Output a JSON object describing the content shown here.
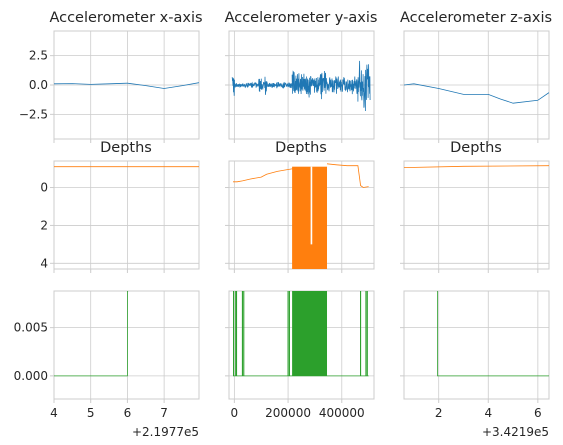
{
  "colors": {
    "accel": "#1f77b4",
    "depth": "#ff7f0e",
    "trigger": "#2ca02c",
    "grid": "#cccccc",
    "text": "#262626"
  },
  "titles": {
    "accel_x": "Accelerometer x-axis",
    "accel_y": "Accelerometer y-axis",
    "accel_z": "Accelerometer z-axis",
    "depth_left": "Depths",
    "depth_mid": "Depths",
    "depth_right": "Depths"
  },
  "offsets": {
    "left": "+2.1977e5",
    "right": "+3.4219e5"
  },
  "chart_data": [
    {
      "id": "ax_x",
      "type": "line",
      "title": "Accelerometer x-axis",
      "xlim": [
        4.0,
        7.95
      ],
      "ylim": [
        -4.6,
        4.6
      ],
      "yticks": [
        2.5,
        0.0,
        -2.5
      ],
      "ytick_labels": [
        "2.5",
        "0.0",
        "−2.5"
      ],
      "xticks": [
        4,
        5,
        6,
        7
      ],
      "show_xtick_labels": false,
      "series": [
        {
          "style": "line",
          "color": "accel",
          "x": [
            4.0,
            4.5,
            5.0,
            5.5,
            6.0,
            6.5,
            7.0,
            7.5,
            7.95
          ],
          "y": [
            0.1,
            0.12,
            0.05,
            0.1,
            0.15,
            -0.05,
            -0.3,
            -0.05,
            0.2
          ]
        }
      ]
    },
    {
      "id": "ax_y",
      "type": "line",
      "title": "Accelerometer y-axis",
      "xlim": [
        -20000,
        520000
      ],
      "ylim": [
        -4.6,
        4.6
      ],
      "yticks": [
        2.5,
        0.0,
        -2.5
      ],
      "show_ytick_labels": false,
      "xticks": [
        0,
        200000,
        400000
      ],
      "show_xtick_labels": false,
      "series": [
        {
          "style": "noise",
          "color": "accel",
          "regions": [
            [
              -8000,
              0,
              0.0,
              2.0
            ],
            [
              0,
              90000,
              0.0,
              0.25
            ],
            [
              90000,
              120000,
              0.0,
              0.9
            ],
            [
              120000,
              215000,
              0.0,
              0.3
            ],
            [
              215000,
              345000,
              0.0,
              1.3
            ],
            [
              345000,
              460000,
              0.0,
              0.9
            ],
            [
              460000,
              505000,
              0.0,
              2.6
            ]
          ]
        }
      ]
    },
    {
      "id": "ax_z",
      "type": "line",
      "title": "Accelerometer z-axis",
      "xlim": [
        0.6,
        6.45
      ],
      "ylim": [
        -4.6,
        4.6
      ],
      "yticks": [
        2.5,
        0.0,
        -2.5
      ],
      "show_ytick_labels": false,
      "xticks": [
        2,
        4,
        6
      ],
      "show_xtick_labels": false,
      "series": [
        {
          "style": "line",
          "color": "accel",
          "x": [
            0.6,
            1.0,
            2.0,
            3.0,
            4.0,
            4.5,
            5.0,
            6.0,
            6.45
          ],
          "y": [
            0.0,
            0.1,
            -0.3,
            -0.8,
            -0.8,
            -1.2,
            -1.55,
            -1.3,
            -0.65
          ]
        }
      ]
    },
    {
      "id": "dp_left",
      "type": "line",
      "title": "Depths",
      "xlim": [
        4.0,
        7.95
      ],
      "ylim": [
        -1.4,
        4.3
      ],
      "inverted_y": true,
      "yticks": [
        0,
        2,
        4
      ],
      "ytick_labels": [
        "0",
        "2",
        "4"
      ],
      "xticks": [
        4,
        5,
        6,
        7
      ],
      "show_xtick_labels": false,
      "series": [
        {
          "style": "line",
          "color": "depth",
          "x": [
            4.0,
            7.95
          ],
          "y": [
            -1.1,
            -1.1
          ]
        }
      ]
    },
    {
      "id": "dp_mid",
      "type": "line",
      "title": "Depths",
      "xlim": [
        -20000,
        520000
      ],
      "ylim": [
        -1.4,
        4.3
      ],
      "inverted_y": true,
      "yticks": [
        0,
        2,
        4
      ],
      "show_ytick_labels": false,
      "xticks": [
        0,
        200000,
        400000
      ],
      "show_xtick_labels": false,
      "series": [
        {
          "style": "line",
          "color": "depth",
          "x": [
            -5000,
            10000,
            30000,
            60000,
            100000,
            120000,
            160000,
            200000,
            220000
          ],
          "y": [
            -0.3,
            -0.3,
            -0.35,
            -0.45,
            -0.55,
            -0.7,
            -0.85,
            -0.95,
            -1.0
          ]
        },
        {
          "style": "line",
          "color": "depth",
          "x": [
            345000,
            380000,
            420000,
            460000,
            470000,
            480000,
            500000
          ],
          "y": [
            -1.25,
            -1.2,
            -1.15,
            -1.15,
            -0.1,
            0.0,
            -0.05
          ]
        },
        {
          "style": "fill",
          "color": "depth",
          "x0": 215000,
          "x1": 345000,
          "y_top": -1.1,
          "y_bottom": 4.3,
          "gaps": [
            [
              284000,
              290000,
              -1.1,
              3.0
            ]
          ]
        }
      ]
    },
    {
      "id": "dp_right",
      "type": "line",
      "title": "Depths",
      "xlim": [
        0.6,
        6.45
      ],
      "ylim": [
        -1.4,
        4.3
      ],
      "inverted_y": true,
      "yticks": [
        0,
        2,
        4
      ],
      "show_ytick_labels": false,
      "xticks": [
        2,
        4,
        6
      ],
      "show_xtick_labels": false,
      "series": [
        {
          "style": "line",
          "color": "depth",
          "x": [
            0.6,
            3.0,
            6.45
          ],
          "y": [
            -1.05,
            -1.12,
            -1.15
          ]
        }
      ]
    },
    {
      "id": "tr_left",
      "type": "line",
      "xlim": [
        4.0,
        7.95
      ],
      "ylim": [
        -0.0024,
        0.0088
      ],
      "yticks": [
        0.005,
        0.0
      ],
      "ytick_labels": [
        "0.005",
        "0.000"
      ],
      "xticks": [
        4,
        5,
        6,
        7
      ],
      "xtick_labels": [
        "4",
        "5",
        "6",
        "7"
      ],
      "offset": "+2.1977e5",
      "series": [
        {
          "style": "line",
          "color": "trigger",
          "x": [
            4.0,
            6.0,
            6.0,
            6.02
          ],
          "y": [
            0.0,
            0.0,
            0.0088,
            0.0088
          ]
        }
      ]
    },
    {
      "id": "tr_mid",
      "type": "line",
      "xlim": [
        -20000,
        520000
      ],
      "ylim": [
        -0.0024,
        0.0088
      ],
      "yticks": [
        0.005,
        0.0
      ],
      "show_ytick_labels": false,
      "xticks": [
        0,
        200000,
        400000
      ],
      "xtick_labels": [
        "0",
        "200000",
        "400000"
      ],
      "series": [
        {
          "style": "line",
          "color": "trigger",
          "x": [
            -5000,
            500000
          ],
          "y": [
            0.0,
            0.0
          ]
        },
        {
          "style": "spikes",
          "color": "trigger",
          "x": [
            -3000,
            5000,
            8000,
            30000,
            35000,
            200000,
            205000,
            470000,
            490000,
            495000
          ],
          "y_low": 0.0,
          "y_high": 0.0088
        },
        {
          "style": "fill",
          "color": "trigger",
          "x0": 215000,
          "x1": 345000,
          "y_top": 0.0088,
          "y_bottom": 0.0,
          "gaps": []
        }
      ]
    },
    {
      "id": "tr_right",
      "type": "line",
      "xlim": [
        0.6,
        6.45
      ],
      "ylim": [
        -0.0024,
        0.0088
      ],
      "yticks": [
        0.005,
        0.0
      ],
      "show_ytick_labels": false,
      "xticks": [
        2,
        4,
        6
      ],
      "xtick_labels": [
        "2",
        "4",
        "6"
      ],
      "offset": "+3.4219e5",
      "series": [
        {
          "style": "line",
          "color": "trigger",
          "x": [
            1.95,
            1.95,
            1.97,
            6.45
          ],
          "y": [
            0.0088,
            0.0,
            0.0,
            0.0
          ]
        }
      ]
    }
  ]
}
